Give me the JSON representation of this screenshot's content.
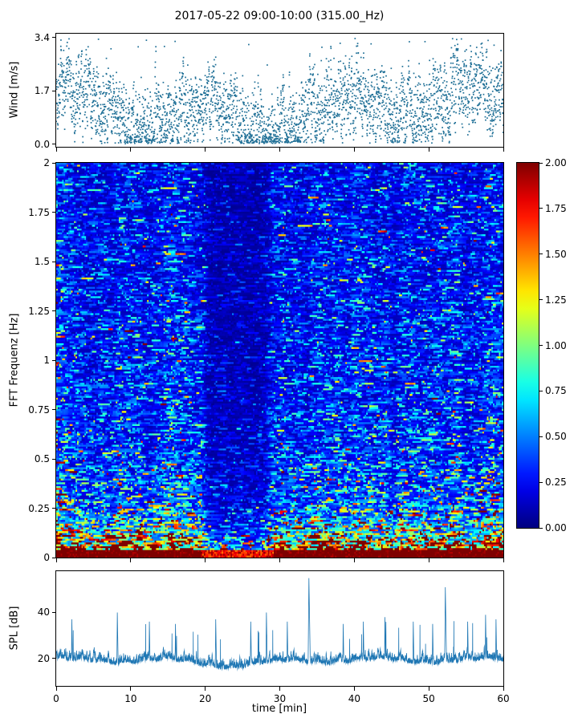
{
  "title": "2017-05-22 09:00-10:00 (315.00_Hz)",
  "xlabel": "time [min]",
  "x_ticks": [
    0,
    10,
    20,
    30,
    40,
    50,
    60
  ],
  "colors": {
    "scatter": "#1e6f96",
    "line": "#1f77b4",
    "axis": "#000000",
    "background": "#ffffff"
  },
  "chart_data": [
    {
      "type": "scatter",
      "name": "wind-speed",
      "ylabel": "Wind [m/s]",
      "xlim": [
        0,
        60
      ],
      "ylim": [
        -0.08,
        3.52
      ],
      "yticks": [
        {
          "v": 3.4,
          "label": "3.4"
        },
        {
          "v": 1.7,
          "label": "1.7"
        },
        {
          "v": 0.0,
          "label": "0.0"
        }
      ],
      "n_points": 3600,
      "seed": 7,
      "y_mean": 1.1,
      "y_range": [
        0.0,
        3.4
      ],
      "marker": "small-dot",
      "description": "dense noisy wind-speed time series sampled ~1/s, values mostly 0.3-2.2 m/s with gusts to 3.4"
    },
    {
      "type": "heatmap",
      "name": "spectrogram",
      "ylabel": "FFT Frequenz [Hz]",
      "xlim": [
        0,
        60
      ],
      "ylim": [
        0,
        2
      ],
      "yticks": [
        {
          "v": 2,
          "label": "2"
        },
        {
          "v": 1.75,
          "label": "1.75"
        },
        {
          "v": 1.5,
          "label": "1.5"
        },
        {
          "v": 1.25,
          "label": "1.25"
        },
        {
          "v": 1,
          "label": "1"
        },
        {
          "v": 0.75,
          "label": "0.75"
        },
        {
          "v": 0.5,
          "label": "0.5"
        },
        {
          "v": 0.25,
          "label": "0.25"
        },
        {
          "v": 0,
          "label": "0"
        }
      ],
      "colormap": "jet",
      "vmin": 0.0,
      "vmax": 2.0,
      "colorbar_ticks": [
        {
          "v": 2.0,
          "label": "2.00"
        },
        {
          "v": 1.75,
          "label": "1.75"
        },
        {
          "v": 1.5,
          "label": "1.50"
        },
        {
          "v": 1.25,
          "label": "1.25"
        },
        {
          "v": 1.0,
          "label": "1.00"
        },
        {
          "v": 0.75,
          "label": "0.75"
        },
        {
          "v": 0.5,
          "label": "0.50"
        },
        {
          "v": 0.25,
          "label": "0.25"
        },
        {
          "v": 0.0,
          "label": "0.00"
        }
      ],
      "rows": 210,
      "cols": 300,
      "seed": 42,
      "freq_profile": [
        [
          0,
          2.3
        ],
        [
          0.03,
          2.2
        ],
        [
          0.06,
          1.6
        ],
        [
          0.1,
          1.15
        ],
        [
          0.15,
          0.9
        ],
        [
          0.2,
          0.68
        ],
        [
          0.28,
          0.52
        ],
        [
          0.4,
          0.42
        ],
        [
          0.6,
          0.36
        ],
        [
          0.9,
          0.32
        ],
        [
          1.3,
          0.29
        ],
        [
          1.7,
          0.27
        ],
        [
          2,
          0.26
        ]
      ],
      "quiet_band": {
        "t_start": 20.5,
        "t_end": 28.0,
        "factor": 0.42
      },
      "loud_bands": [
        [
          0,
          1.5,
          1.3
        ],
        [
          8,
          10,
          1.15
        ],
        [
          14.5,
          16.5,
          1.15
        ],
        [
          47.5,
          52,
          1.15
        ],
        [
          57,
          59.5,
          1.1
        ]
      ],
      "noise": {
        "floor": 0.3,
        "exp_mean": 0.75
      },
      "description": "energy concentrated below 0.2 Hz (solid dark-red band at bottom), mostly blue above 0.3 Hz with sparse cyan/green streaks, distinctly quieter dark column between ~20 and 28 min"
    },
    {
      "type": "line",
      "name": "spl",
      "ylabel": "SPL [dB]",
      "xlim": [
        0,
        60
      ],
      "ylim": [
        8,
        58
      ],
      "yticks": [
        {
          "v": 40,
          "label": "40"
        },
        {
          "v": 20,
          "label": "20"
        }
      ],
      "n_points": 3600,
      "seed": 99,
      "baseline": 18.5,
      "quiet_dip": {
        "t_center": 24,
        "width": 8,
        "depth": 2.4
      },
      "spikes": [
        [
          33.9,
          55
        ],
        [
          52.2,
          51
        ],
        [
          8.2,
          40
        ],
        [
          2.1,
          37
        ],
        [
          12.5,
          36
        ],
        [
          16.0,
          35
        ],
        [
          21.4,
          37
        ],
        [
          26.1,
          36
        ],
        [
          28.2,
          40
        ],
        [
          31.0,
          36
        ],
        [
          38.5,
          35
        ],
        [
          41.2,
          36
        ],
        [
          44.1,
          38
        ],
        [
          47.9,
          36
        ],
        [
          50.5,
          35
        ],
        [
          55.2,
          36
        ],
        [
          57.6,
          39
        ],
        [
          59.0,
          37
        ]
      ],
      "description": "noisy SPL trace fluctuating around 18-25 dB with many thin spikes to 35-40 dB and two tall spikes (~55 dB near 34 min, ~51 dB near 52 min)"
    }
  ]
}
